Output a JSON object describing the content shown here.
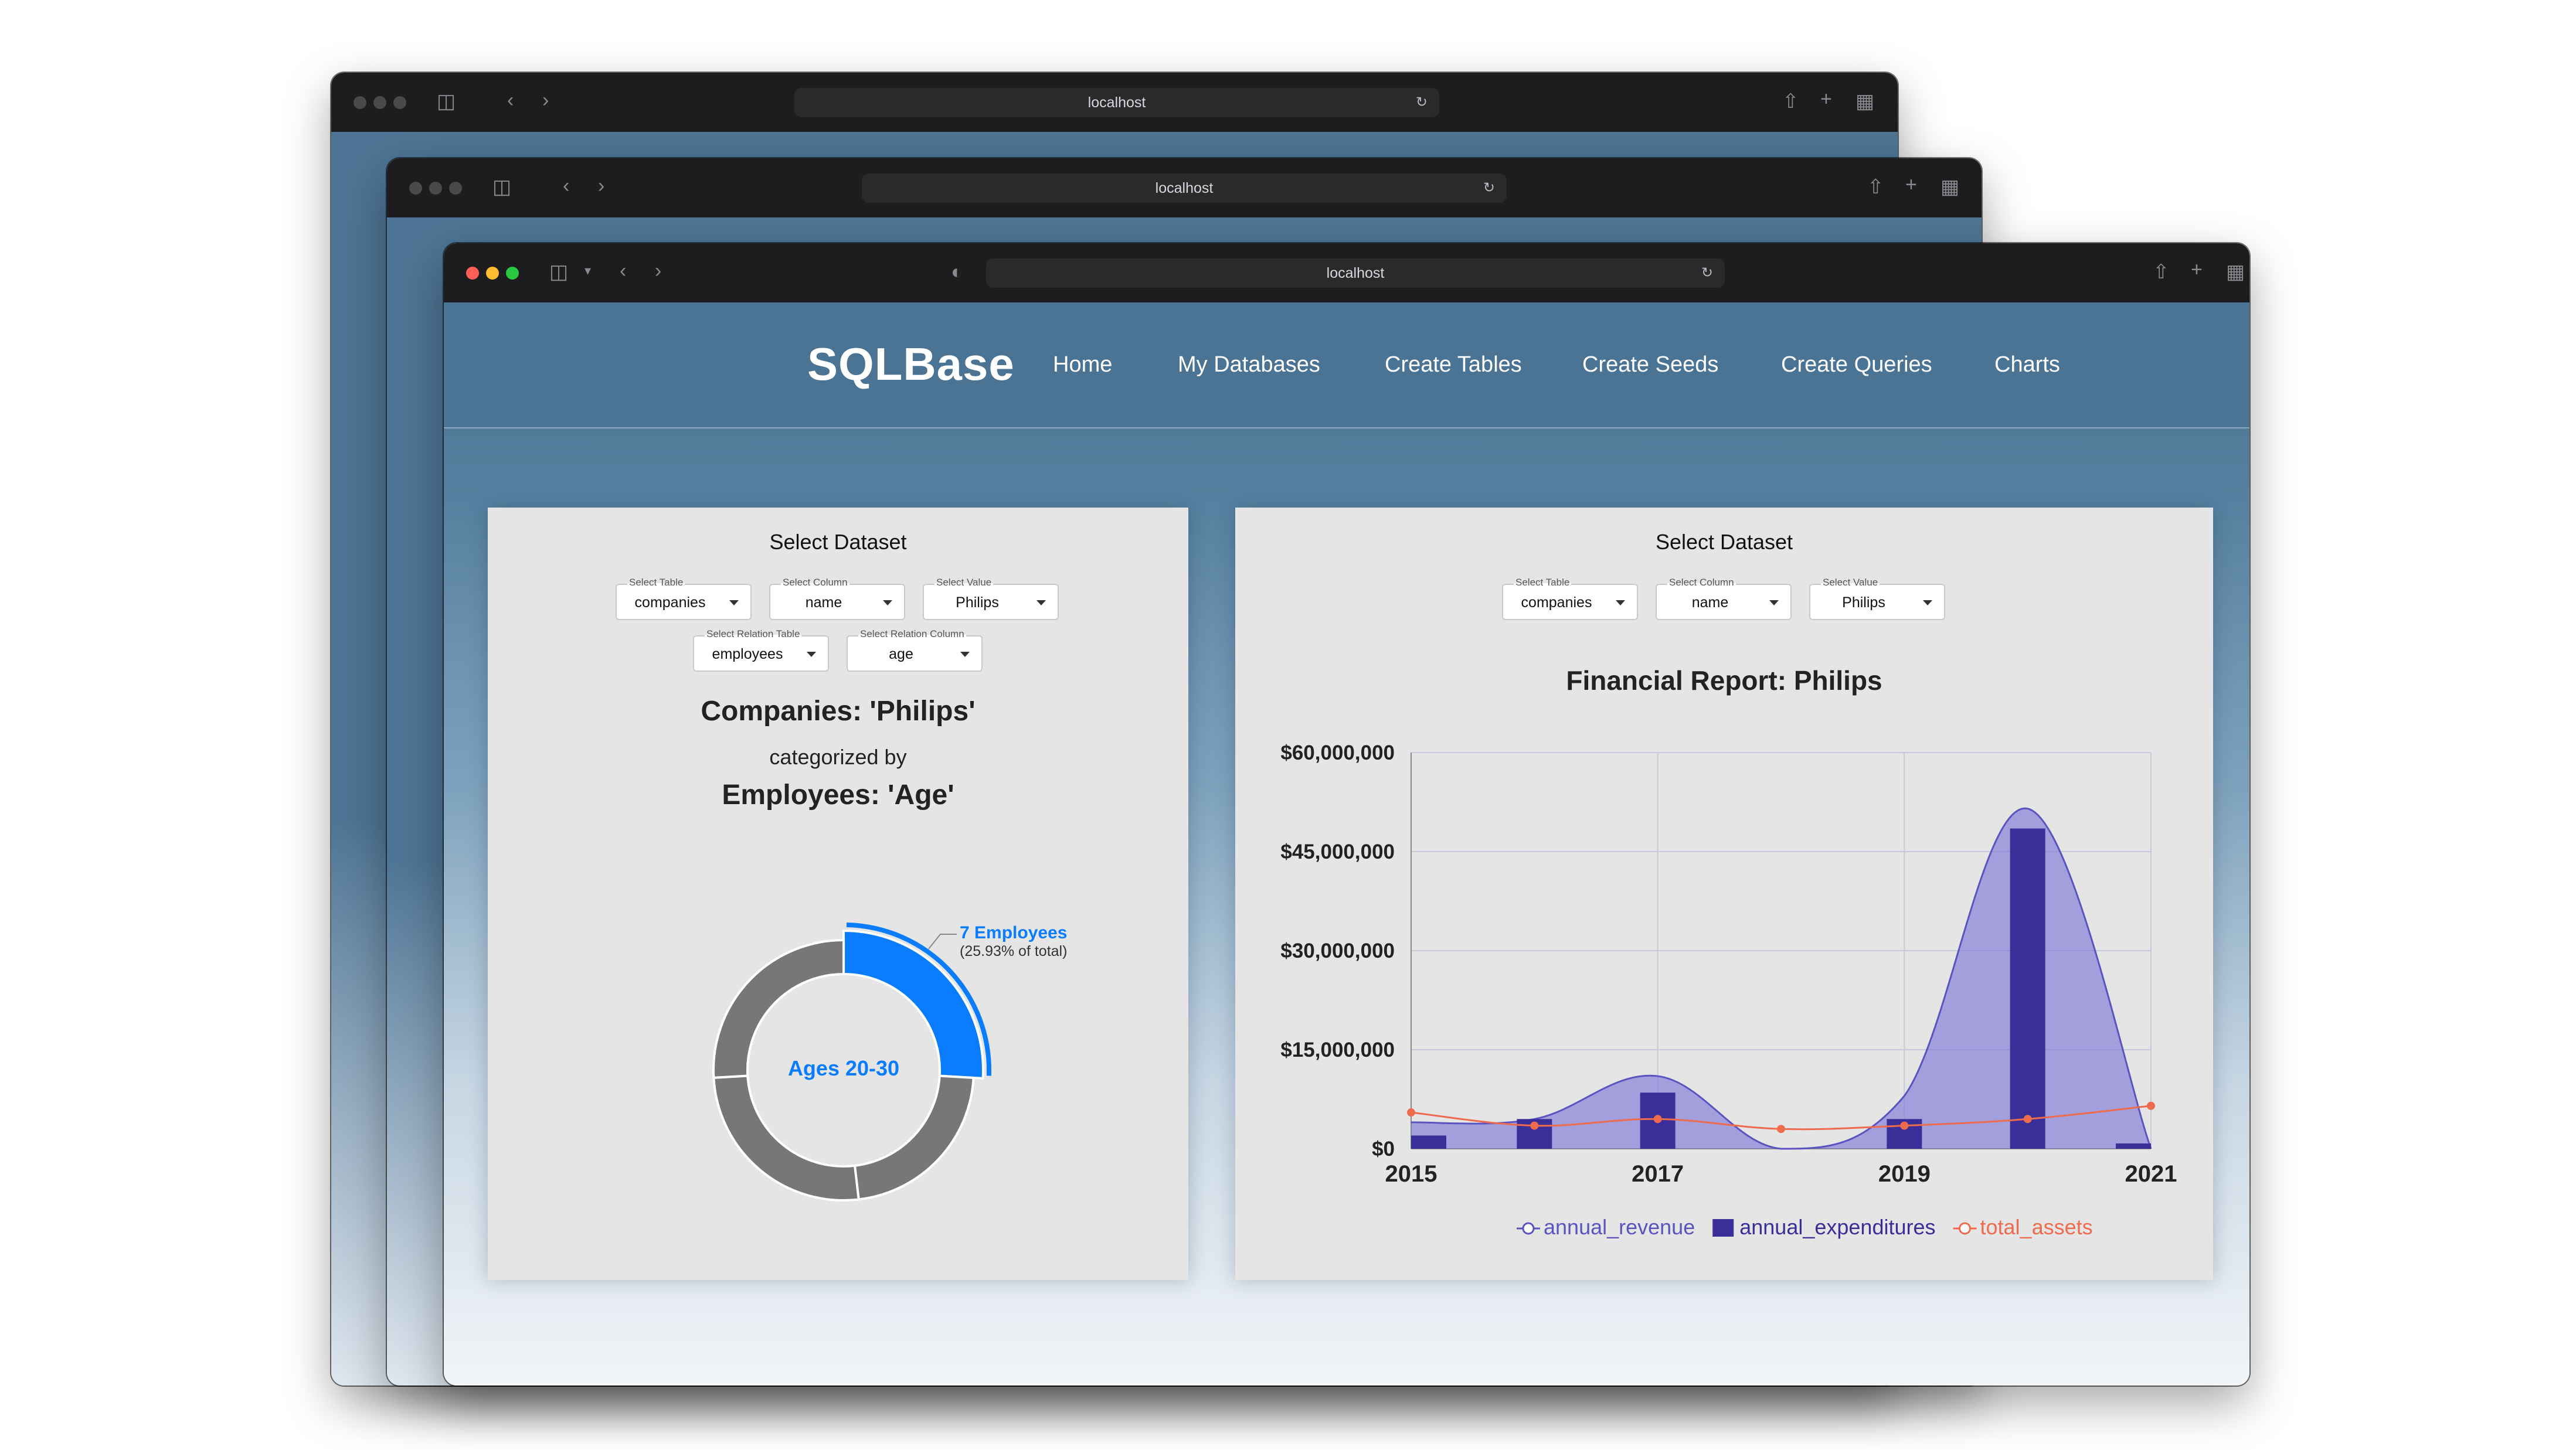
{
  "browser": {
    "back_url": "localhost",
    "mid_url": "localhost",
    "front_url": "localhost"
  },
  "app": {
    "brand": "SQLBase",
    "nav": [
      "Home",
      "My Databases",
      "Create Tables",
      "Create Seeds",
      "Create Queries",
      "Charts"
    ]
  },
  "left_card": {
    "title": "Select Dataset",
    "selects": [
      {
        "label": "Select Table",
        "value": "companies"
      },
      {
        "label": "Select Column",
        "value": "name"
      },
      {
        "label": "Select Value",
        "value": "Philips"
      },
      {
        "label": "Select Relation Table",
        "value": "employees"
      },
      {
        "label": "Select Relation Column",
        "value": "age"
      }
    ],
    "heading1": "Companies: 'Philips'",
    "subheading": "categorized by",
    "heading2": "Employees: 'Age'",
    "donut": {
      "center_label": "Ages 20-30",
      "callout_main": "7 Employees",
      "callout_sub": "(25.93% of total)",
      "highlight_fraction": 0.2593,
      "other_fractions": [
        0.2222,
        0.2593,
        0.2593
      ],
      "highlight_color": "#0a7cff",
      "other_color": "#777777"
    }
  },
  "right_card": {
    "title": "Select Dataset",
    "selects": [
      {
        "label": "Select Table",
        "value": "companies"
      },
      {
        "label": "Select Column",
        "value": "name"
      },
      {
        "label": "Select Value",
        "value": "Philips"
      }
    ]
  },
  "chart_data": {
    "type": "bar",
    "title": "Financial Report: Philips",
    "x": [
      2015,
      2016,
      2017,
      2018,
      2019,
      2020,
      2021
    ],
    "x_ticks": [
      "2015",
      "2017",
      "2019",
      "2021"
    ],
    "y_ticks": [
      "$0",
      "$15,000,000",
      "$30,000,000",
      "$45,000,000",
      "$60,000,000"
    ],
    "ylim": [
      0,
      60000000
    ],
    "grid": true,
    "legend_position": "bottom",
    "series": [
      {
        "name": "annual_revenue",
        "kind": "area",
        "color": "#7a74d6",
        "values": [
          4000000,
          4500000,
          11000000,
          0,
          8000000,
          51500000,
          0
        ]
      },
      {
        "name": "annual_expenditures",
        "kind": "bar",
        "color": "#3a2e98",
        "values": [
          2000000,
          4500000,
          8500000,
          0,
          4500000,
          48500000,
          800000
        ]
      },
      {
        "name": "total_assets",
        "kind": "line",
        "color": "#ef6b4d",
        "values": [
          5500000,
          3500000,
          4500000,
          3000000,
          3500000,
          4500000,
          6500000
        ]
      }
    ]
  }
}
